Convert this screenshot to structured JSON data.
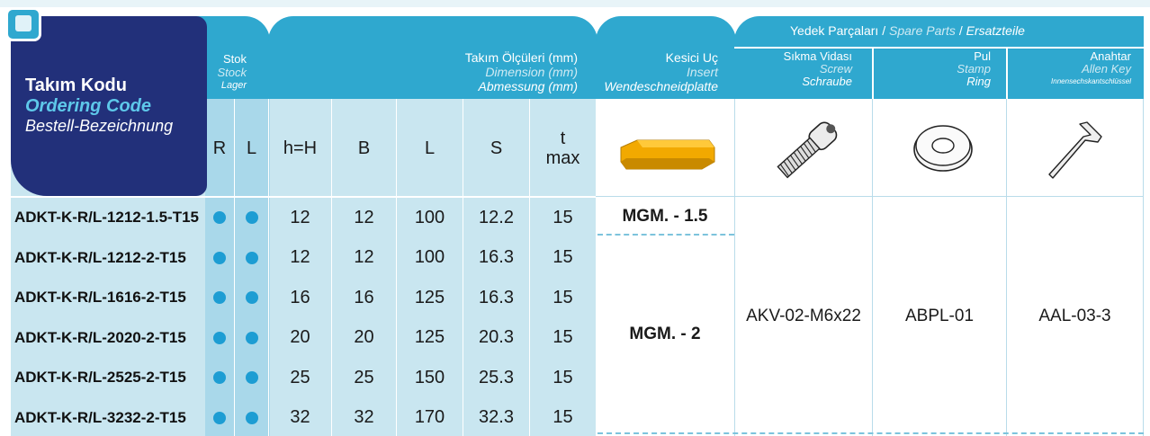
{
  "header": {
    "ordering_code": {
      "tr": "Takım Kodu",
      "en": "Ordering Code",
      "de": "Bestell-Bezeichnung"
    },
    "stock": {
      "tr": "Stok",
      "en": "Stock",
      "de": "Lager"
    },
    "dimension": {
      "tr": "Takım Ölçüleri (mm)",
      "en": "Dimension (mm)",
      "de": "Abmessung (mm)"
    },
    "insert": {
      "tr": "Kesici Uç",
      "en": "Insert",
      "de": "Wendeschneidplatte"
    },
    "spare": {
      "tr": "Yedek Parçaları / ",
      "en": "Spare Parts",
      "sep": " / ",
      "de": "Ersatzteile"
    },
    "screw": {
      "tr": "Sıkma Vidası",
      "en": "Screw",
      "de": "Schraube"
    },
    "stamp": {
      "tr": "Pul",
      "en": "Stamp",
      "de": "Ring"
    },
    "allen": {
      "tr": "Anahtar",
      "en": "Allen Key",
      "de": "Innensechskantschlüssel"
    }
  },
  "columns": {
    "r": "R",
    "l": "L",
    "h": "h=H",
    "b": "B",
    "len": "L",
    "s": "S",
    "t1": "t",
    "t2": "max"
  },
  "rows": [
    {
      "code": "ADKT-K-R/L-1212-1.5-T15",
      "h": "12",
      "b": "12",
      "l": "100",
      "s": "12.2",
      "t": "15"
    },
    {
      "code": "ADKT-K-R/L-1212-2-T15",
      "h": "12",
      "b": "12",
      "l": "100",
      "s": "16.3",
      "t": "15"
    },
    {
      "code": "ADKT-K-R/L-1616-2-T15",
      "h": "16",
      "b": "16",
      "l": "125",
      "s": "16.3",
      "t": "15"
    },
    {
      "code": "ADKT-K-R/L-2020-2-T15",
      "h": "20",
      "b": "20",
      "l": "125",
      "s": "20.3",
      "t": "15"
    },
    {
      "code": "ADKT-K-R/L-2525-2-T15",
      "h": "25",
      "b": "25",
      "l": "150",
      "s": "25.3",
      "t": "15"
    },
    {
      "code": "ADKT-K-R/L-3232-2-T15",
      "h": "32",
      "b": "32",
      "l": "170",
      "s": "32.3",
      "t": "15"
    }
  ],
  "insert_values": {
    "first": "MGM. - 1.5",
    "rest": "MGM. - 2"
  },
  "spare_values": {
    "screw": "AKV-02-M6x22",
    "stamp": "ABPL-01",
    "allen": "AAL-03-3"
  },
  "colors": {
    "header_blue": "#2fa8cf",
    "navy": "#22307a",
    "light": "#c9e6f0",
    "dot": "#1d9dd3",
    "insert": "#f2a900"
  }
}
